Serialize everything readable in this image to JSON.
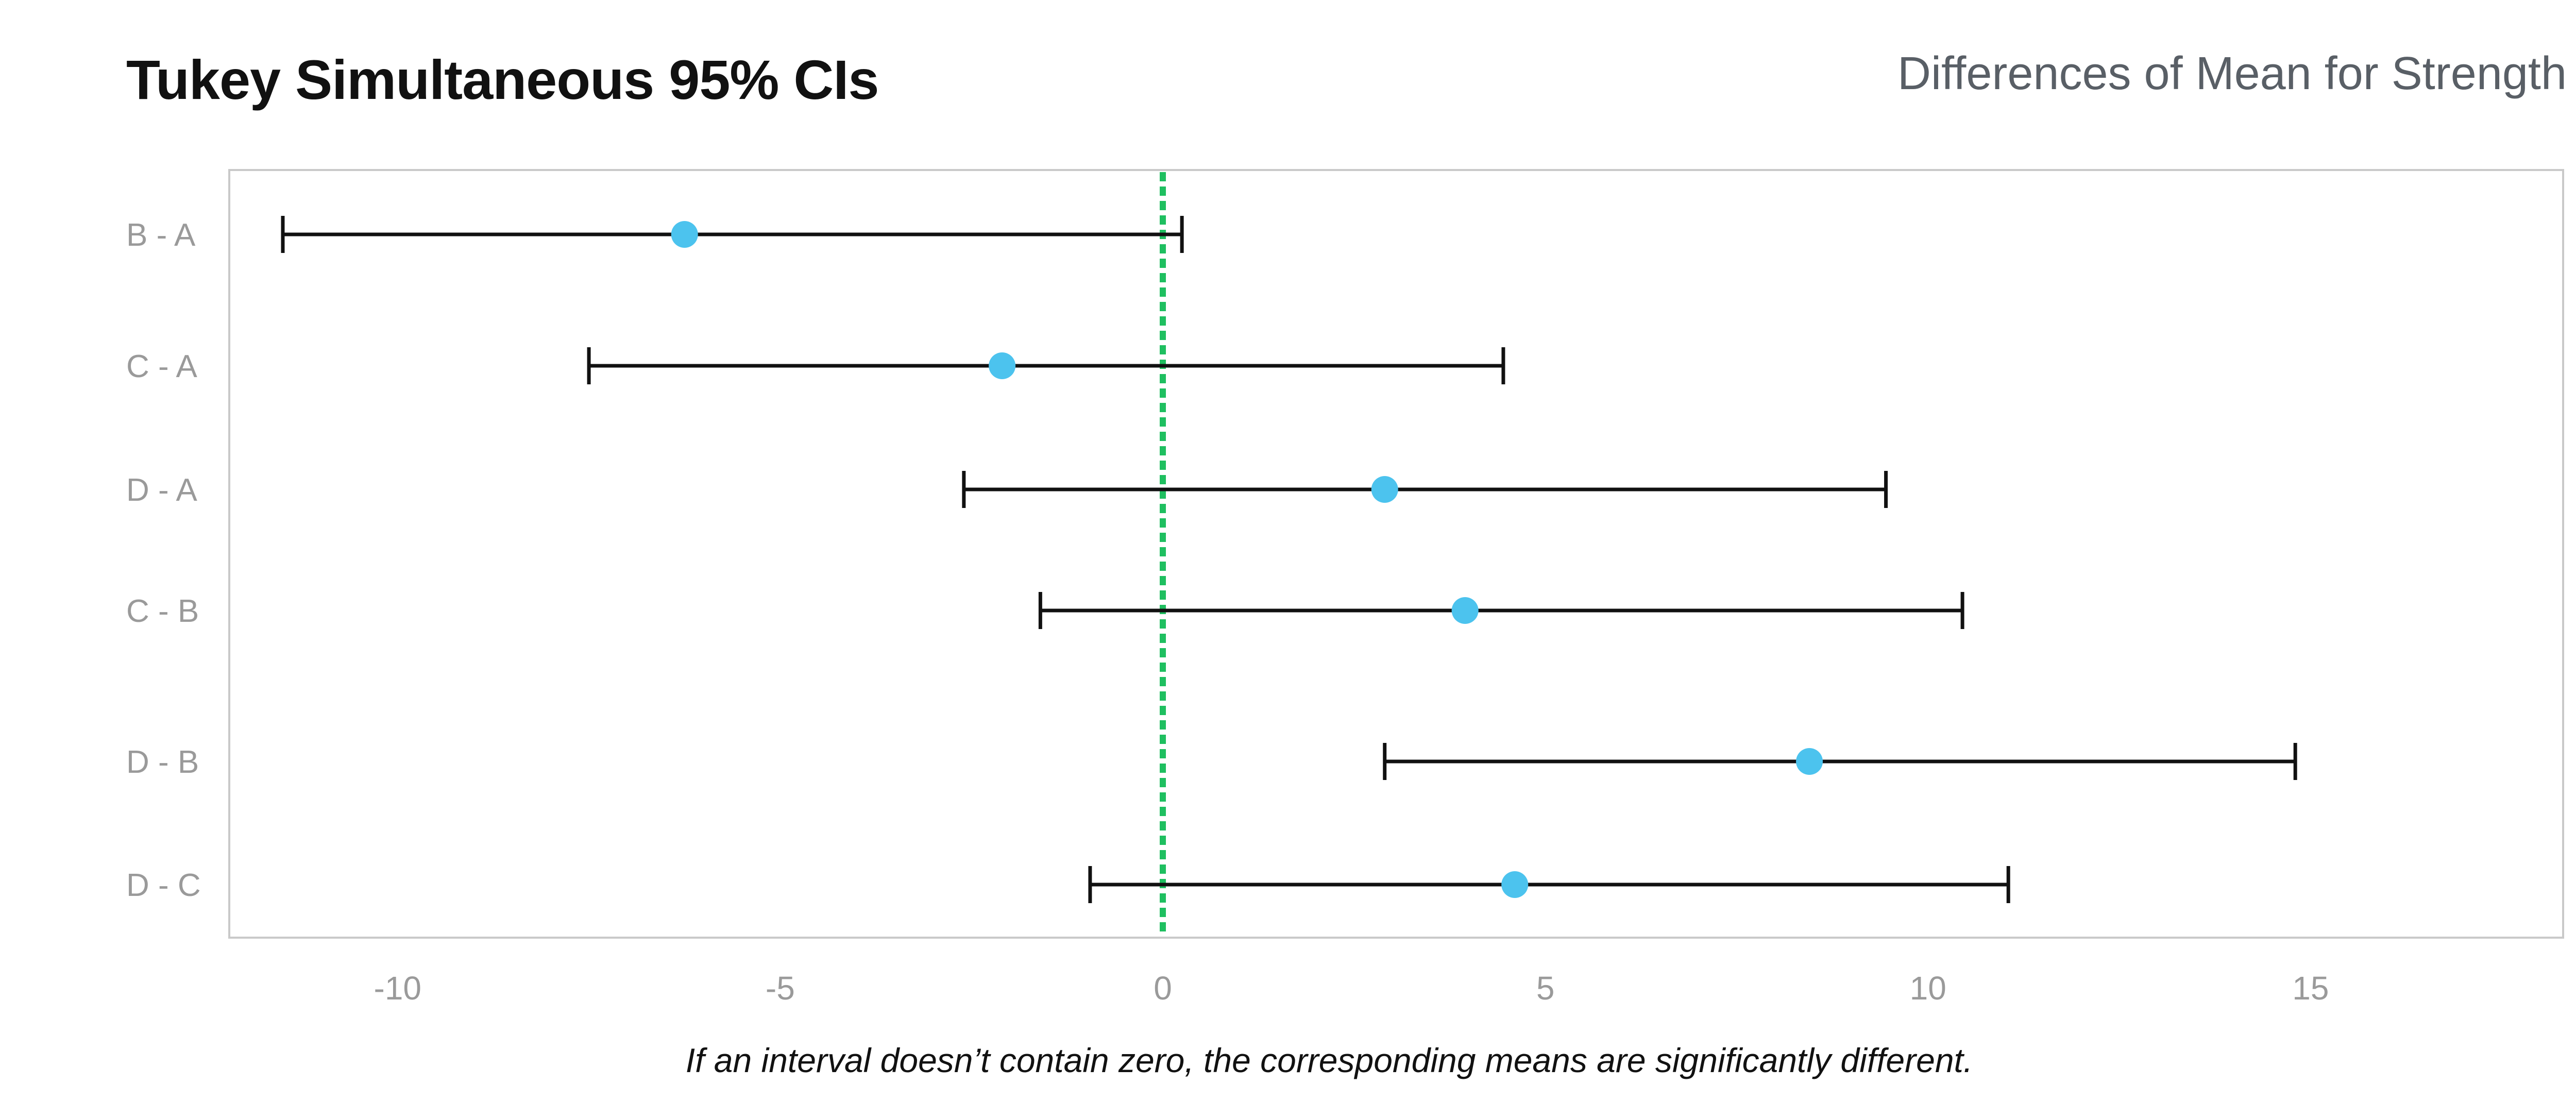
{
  "header": {
    "title": "Tukey Simultaneous 95% CIs",
    "subtitle": "Differences of Mean for Strength"
  },
  "footnote": "If an interval doesn’t contain zero, the corresponding means are significantly different.",
  "colors": {
    "point": "#4cc3ee",
    "interval": "#111111",
    "zero_line": "#1fbf60",
    "frame": "#c9c9c9",
    "tick_label": "#9a9a9a"
  },
  "chart_data": {
    "type": "scatter",
    "orientation": "horizontal",
    "categories": [
      "B - A",
      "C - A",
      "D - A",
      "C - B",
      "D - B",
      "D - C"
    ],
    "series": [
      {
        "values": [
          -6.25,
          -2.1,
          2.9,
          3.95,
          8.45,
          4.6
        ],
        "lower": [
          -11.5,
          -7.5,
          -2.6,
          -1.6,
          2.9,
          -0.95
        ],
        "upper": [
          0.25,
          4.45,
          9.45,
          10.45,
          14.8,
          11.05
        ]
      }
    ],
    "reference_line": 0,
    "xlim": [
      -12.2,
      18.3
    ],
    "xticks": [
      -10,
      -5,
      0,
      5,
      10,
      15
    ],
    "grid": false
  }
}
